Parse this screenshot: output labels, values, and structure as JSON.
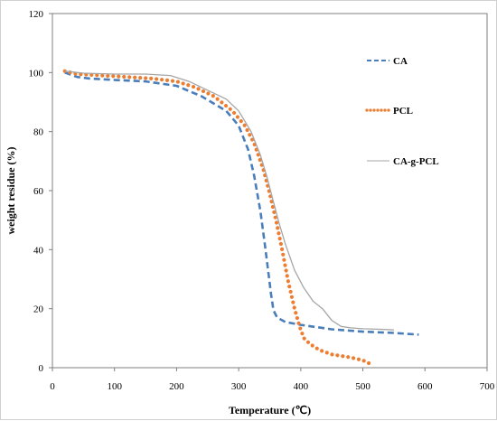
{
  "chart_data": {
    "type": "line",
    "xlabel": "Temperature (℃)",
    "ylabel": "weight residue (%)",
    "xlim": [
      0,
      700
    ],
    "ylim": [
      0,
      120
    ],
    "x_ticks": [
      "0",
      "100",
      "200",
      "300",
      "400",
      "500",
      "600",
      "700"
    ],
    "y_ticks": [
      "0",
      "20",
      "40",
      "60",
      "80",
      "100",
      "120"
    ],
    "grid": false,
    "legend_position": "right",
    "series": [
      {
        "name": "CA",
        "color": "#4a7ebb",
        "style": "dashed",
        "points": [
          [
            20,
            100
          ],
          [
            40,
            98.5
          ],
          [
            60,
            98
          ],
          [
            100,
            97.5
          ],
          [
            150,
            97
          ],
          [
            200,
            95.5
          ],
          [
            240,
            92
          ],
          [
            280,
            87
          ],
          [
            300,
            82
          ],
          [
            315,
            74
          ],
          [
            325,
            65
          ],
          [
            335,
            53
          ],
          [
            342,
            42
          ],
          [
            348,
            32
          ],
          [
            352,
            25
          ],
          [
            356,
            19.5
          ],
          [
            362,
            17
          ],
          [
            375,
            15.5
          ],
          [
            400,
            14.5
          ],
          [
            450,
            13
          ],
          [
            500,
            12.2
          ],
          [
            550,
            11.8
          ],
          [
            590,
            11.2
          ]
        ]
      },
      {
        "name": "PCL",
        "color": "#ed7d31",
        "style": "dotted",
        "points": [
          [
            20,
            100.5
          ],
          [
            40,
            99.5
          ],
          [
            80,
            99
          ],
          [
            120,
            98.5
          ],
          [
            160,
            98
          ],
          [
            200,
            97
          ],
          [
            230,
            95
          ],
          [
            260,
            92
          ],
          [
            290,
            87
          ],
          [
            310,
            82
          ],
          [
            325,
            76
          ],
          [
            340,
            67
          ],
          [
            350,
            59
          ],
          [
            360,
            50
          ],
          [
            370,
            40
          ],
          [
            380,
            29
          ],
          [
            390,
            20
          ],
          [
            398,
            14
          ],
          [
            405,
            10
          ],
          [
            415,
            8
          ],
          [
            430,
            6
          ],
          [
            450,
            4.5
          ],
          [
            480,
            3.5
          ],
          [
            500,
            2.5
          ],
          [
            510,
            1.5
          ]
        ]
      },
      {
        "name": "CA-g-PCL",
        "color": "#a6a6a6",
        "style": "solid",
        "points": [
          [
            20,
            100.5
          ],
          [
            50,
            99.8
          ],
          [
            100,
            99.5
          ],
          [
            150,
            99.5
          ],
          [
            190,
            99
          ],
          [
            220,
            97
          ],
          [
            250,
            94
          ],
          [
            280,
            91
          ],
          [
            300,
            87
          ],
          [
            320,
            80
          ],
          [
            335,
            72
          ],
          [
            345,
            65
          ],
          [
            355,
            57
          ],
          [
            365,
            49
          ],
          [
            375,
            42
          ],
          [
            390,
            33
          ],
          [
            405,
            27
          ],
          [
            420,
            22.5
          ],
          [
            435,
            20
          ],
          [
            450,
            16
          ],
          [
            465,
            14
          ],
          [
            480,
            13.5
          ],
          [
            500,
            13.2
          ],
          [
            530,
            13
          ],
          [
            550,
            12.8
          ]
        ]
      }
    ]
  }
}
